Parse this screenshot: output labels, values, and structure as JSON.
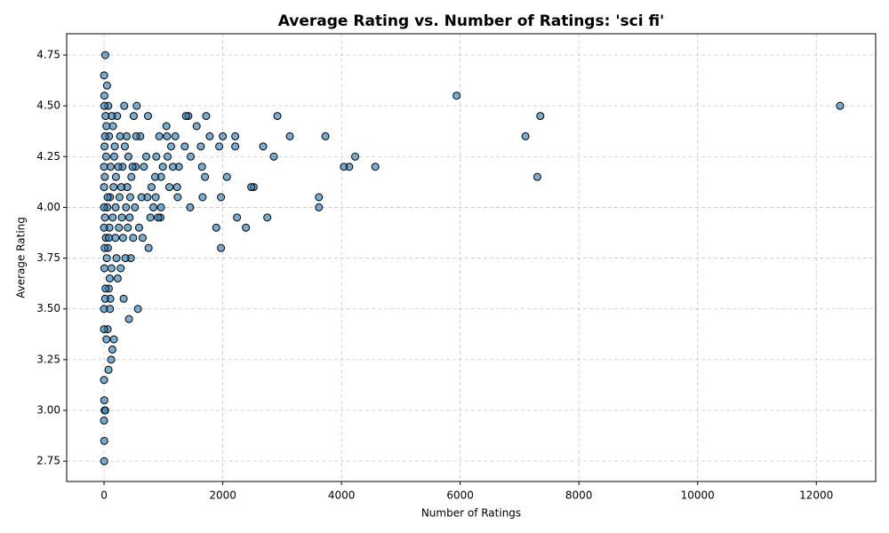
{
  "chart_data": {
    "type": "scatter",
    "title": "Average Rating vs. Number of Ratings: 'sci fi'",
    "x_label": "Number of Ratings",
    "y_label": "Average Rating",
    "color": "#1f77b4",
    "edge_color": "#000000",
    "grid": true,
    "xlim": [
      -630,
      13000
    ],
    "ylim": [
      2.65,
      4.855
    ],
    "xticks": [
      0,
      2000,
      4000,
      6000,
      8000,
      10000,
      12000
    ],
    "yticks": [
      2.75,
      {
        "value": 3,
        "label": "3.00"
      },
      3.25,
      {
        "value": 3.5,
        "label": "3.50"
      },
      3.75,
      {
        "value": 4,
        "label": "4.00"
      },
      4.25,
      {
        "value": 4.5,
        "label": "4.50"
      },
      4.75
    ],
    "x": [
      12400,
      5940,
      7350,
      7100,
      7300,
      4570,
      4230,
      4130,
      4040,
      3730,
      3620,
      3620,
      3130,
      2920,
      2860,
      2750,
      2680,
      2520,
      2480,
      2390,
      2240,
      2210,
      2210,
      2070,
      2000,
      1970,
      1970,
      1940,
      1890,
      1780,
      1720,
      1700,
      1660,
      1650,
      1630,
      1560,
      1460,
      1450,
      1420,
      1380,
      1360,
      1260,
      1240,
      1230,
      1200,
      1160,
      1130,
      1100,
      1070,
      1060,
      1050,
      990,
      960,
      960,
      950,
      930,
      910,
      880,
      870,
      860,
      830,
      800,
      780,
      750,
      740,
      730,
      710,
      670,
      650,
      630,
      610,
      590,
      570,
      550,
      540,
      530,
      520,
      500,
      490,
      480,
      460,
      450,
      440,
      430,
      420,
      410,
      400,
      390,
      380,
      370,
      360,
      350,
      340,
      330,
      320,
      310,
      300,
      290,
      280,
      270,
      260,
      250,
      240,
      230,
      220,
      210,
      200,
      195,
      190,
      180,
      170,
      165,
      160,
      150,
      145,
      140,
      130,
      125,
      120,
      110,
      105,
      100,
      95,
      90,
      85,
      80,
      75,
      70,
      65,
      60,
      55,
      50,
      45,
      40,
      35,
      30,
      25,
      20,
      18,
      15,
      12,
      10,
      8,
      6,
      5,
      4,
      3,
      2,
      1,
      0,
      0,
      0,
      0,
      0,
      0,
      0,
      0,
      20,
      40,
      60,
      80,
      100,
      15,
      25,
      10,
      5
    ],
    "values": [
      4.5,
      4.55,
      4.45,
      4.35,
      4.15,
      4.2,
      4.25,
      4.2,
      4.2,
      4.35,
      4.05,
      4.0,
      4.35,
      4.45,
      4.25,
      3.95,
      4.3,
      4.1,
      4.1,
      3.9,
      3.95,
      4.35,
      4.3,
      4.15,
      4.35,
      4.05,
      3.8,
      4.3,
      3.9,
      4.35,
      4.45,
      4.15,
      4.05,
      4.2,
      4.3,
      4.4,
      4.25,
      4.0,
      4.45,
      4.45,
      4.3,
      4.2,
      4.05,
      4.1,
      4.35,
      4.2,
      4.3,
      4.1,
      4.25,
      4.35,
      4.4,
      4.2,
      4.0,
      4.15,
      3.95,
      4.35,
      3.95,
      4.25,
      4.05,
      4.15,
      4.0,
      4.1,
      3.95,
      3.8,
      4.45,
      4.05,
      4.25,
      4.2,
      3.85,
      4.05,
      4.35,
      3.9,
      3.5,
      4.5,
      4.35,
      4.2,
      4.0,
      4.45,
      3.85,
      4.2,
      4.15,
      3.75,
      4.05,
      3.95,
      3.45,
      4.25,
      3.9,
      4.1,
      4.35,
      4.0,
      3.75,
      4.3,
      4.5,
      3.55,
      3.85,
      4.2,
      3.95,
      4.1,
      3.7,
      4.35,
      4.05,
      3.9,
      4.2,
      3.65,
      4.45,
      3.75,
      4.15,
      4.0,
      3.85,
      4.3,
      4.25,
      3.35,
      4.1,
      4.4,
      3.95,
      3.3,
      4.45,
      3.7,
      3.25,
      4.2,
      3.55,
      4.05,
      3.65,
      3.9,
      4.35,
      3.6,
      3.2,
      4.5,
      3.8,
      3.4,
      4.0,
      4.6,
      3.75,
      3.35,
      4.25,
      3.85,
      4.45,
      4.75,
      3.55,
      3.95,
      4.15,
      3.0,
      4.3,
      3.7,
      4.55,
      3.05,
      2.85,
      2.75,
      4.65,
      3.15,
      2.95,
      4.0,
      4.2,
      3.9,
      4.1,
      3.5,
      3.4,
      3.0,
      4.4,
      4.05,
      3.85,
      3.5,
      4.35,
      3.6,
      3.8,
      4.5
    ]
  }
}
